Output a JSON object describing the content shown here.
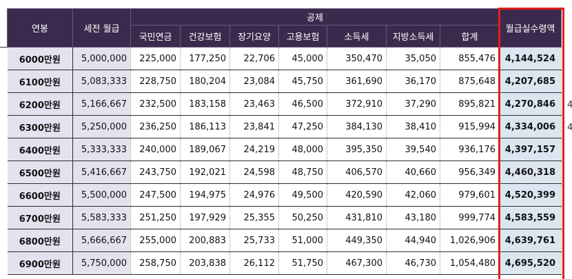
{
  "header": {
    "annual_salary": "연봉",
    "gross_monthly": "세전 월급",
    "deductions_group": "공제",
    "deductions": [
      "국민연금",
      "건강보험",
      "장기요양",
      "고용보험",
      "소득세",
      "지방소득세",
      "합계"
    ],
    "net_monthly": "월급실수령액"
  },
  "rows": [
    {
      "salary": "6000만원",
      "gross": "5,000,000",
      "pension": "225,000",
      "health": "177,250",
      "care": "22,706",
      "employment": "45,000",
      "income_tax": "350,470",
      "local_tax": "35,050",
      "total": "855,476",
      "net": "4,144,524"
    },
    {
      "salary": "6100만원",
      "gross": "5,083,333",
      "pension": "228,750",
      "health": "180,204",
      "care": "23,084",
      "employment": "45,750",
      "income_tax": "361,690",
      "local_tax": "36,170",
      "total": "875,648",
      "net": "4,207,685"
    },
    {
      "salary": "6200만원",
      "gross": "5,166,667",
      "pension": "232,500",
      "health": "183,158",
      "care": "23,463",
      "employment": "46,500",
      "income_tax": "372,910",
      "local_tax": "37,290",
      "total": "895,821",
      "net": "4,270,846"
    },
    {
      "salary": "6300만원",
      "gross": "5,250,000",
      "pension": "236,250",
      "health": "186,113",
      "care": "23,841",
      "employment": "47,250",
      "income_tax": "384,130",
      "local_tax": "38,410",
      "total": "915,994",
      "net": "4,334,006"
    },
    {
      "salary": "6400만원",
      "gross": "5,333,333",
      "pension": "240,000",
      "health": "189,067",
      "care": "24,219",
      "employment": "48,000",
      "income_tax": "395,350",
      "local_tax": "39,540",
      "total": "936,176",
      "net": "4,397,157"
    },
    {
      "salary": "6500만원",
      "gross": "5,416,667",
      "pension": "243,750",
      "health": "192,021",
      "care": "24,598",
      "employment": "48,750",
      "income_tax": "406,570",
      "local_tax": "40,660",
      "total": "956,349",
      "net": "4,460,318"
    },
    {
      "salary": "6600만원",
      "gross": "5,500,000",
      "pension": "247,500",
      "health": "194,975",
      "care": "24,976",
      "employment": "49,500",
      "income_tax": "420,590",
      "local_tax": "42,060",
      "total": "979,601",
      "net": "4,520,399"
    },
    {
      "salary": "6700만원",
      "gross": "5,583,333",
      "pension": "251,250",
      "health": "197,929",
      "care": "25,355",
      "employment": "50,250",
      "income_tax": "431,810",
      "local_tax": "43,180",
      "total": "999,774",
      "net": "4,583,559"
    },
    {
      "salary": "6800만원",
      "gross": "5,666,667",
      "pension": "255,000",
      "health": "200,883",
      "care": "25,733",
      "employment": "51,000",
      "income_tax": "449,350",
      "local_tax": "44,940",
      "total": "1,026,906",
      "net": "4,639,761"
    },
    {
      "salary": "6900만원",
      "gross": "5,750,000",
      "pension": "258,750",
      "health": "203,838",
      "care": "26,112",
      "employment": "51,750",
      "income_tax": "467,300",
      "local_tax": "46,730",
      "total": "1,054,480",
      "net": "4,695,520"
    }
  ],
  "edge_glyphs": [
    "4",
    "4"
  ],
  "colors": {
    "header_bg": "#3b2a4d",
    "salary_bg": "#e6e1ef",
    "net_bg": "#dce6f1",
    "highlight_border": "#e0201c"
  }
}
